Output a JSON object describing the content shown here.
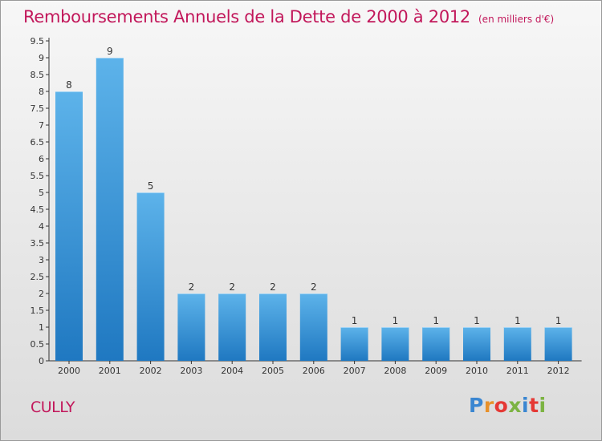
{
  "title": {
    "main": "Remboursements Annuels de la Dette de 2000 à 2012",
    "unit": "(en milliers d'€)"
  },
  "commune": "CULLY",
  "logo": {
    "text": "Proxiti",
    "colors": [
      "#3a86d1",
      "#e8912a",
      "#e53935",
      "#7cb342",
      "#3a86d1",
      "#e53935",
      "#7cb342"
    ]
  },
  "colors": {
    "title": "#c2185b",
    "bar_light": "#5db3ea",
    "bar_dark": "#1f78c1"
  },
  "chart_data": {
    "type": "bar",
    "categories": [
      "2000",
      "2001",
      "2002",
      "2003",
      "2004",
      "2005",
      "2006",
      "2007",
      "2008",
      "2009",
      "2010",
      "2011",
      "2012"
    ],
    "values": [
      8,
      9,
      5,
      2,
      2,
      2,
      2,
      1,
      1,
      1,
      1,
      1,
      1
    ],
    "data_labels": [
      "8",
      "9",
      "5",
      "2",
      "2",
      "2",
      "2",
      "1",
      "1",
      "1",
      "1",
      "1",
      "1"
    ],
    "y_ticks": [
      "0",
      "0.5",
      "1",
      "1.5",
      "2",
      "2.5",
      "3",
      "3.5",
      "4",
      "4.5",
      "5",
      "5.5",
      "6",
      "6.5",
      "7",
      "7.5",
      "8",
      "8.5",
      "9",
      "9.5"
    ],
    "ylim": [
      0,
      9.5
    ],
    "grid": false,
    "xlabel": "",
    "ylabel": ""
  }
}
